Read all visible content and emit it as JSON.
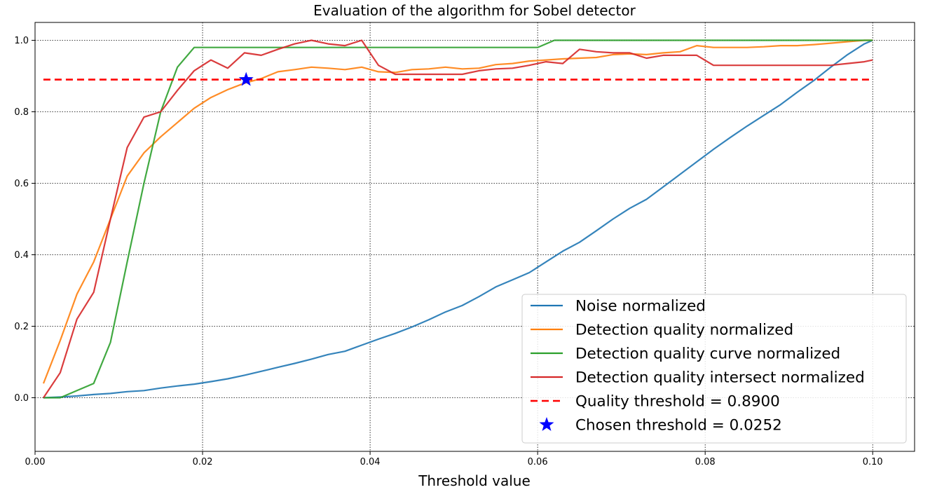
{
  "chart_data": {
    "type": "line",
    "title": "Evaluation of the algorithm for Sobel detector",
    "xlabel": "Threshold value",
    "ylabel": "",
    "xlim": [
      0.0,
      0.105
    ],
    "ylim": [
      -0.15,
      1.05
    ],
    "grid": true,
    "legend_position": "lower-right",
    "x_ticks": [
      "0.00",
      "0.02",
      "0.04",
      "0.06",
      "0.08",
      "0.10"
    ],
    "y_ticks": [
      "0.0",
      "0.2",
      "0.4",
      "0.6",
      "0.8",
      "1.0"
    ],
    "series": [
      {
        "name": "Noise normalized",
        "color": "#1f77b4",
        "style": "solid",
        "x": [
          0.001,
          0.003,
          0.005,
          0.007,
          0.009,
          0.011,
          0.013,
          0.015,
          0.017,
          0.019,
          0.021,
          0.023,
          0.025,
          0.027,
          0.029,
          0.031,
          0.033,
          0.035,
          0.037,
          0.039,
          0.041,
          0.043,
          0.045,
          0.047,
          0.049,
          0.051,
          0.053,
          0.055,
          0.057,
          0.059,
          0.061,
          0.063,
          0.065,
          0.067,
          0.069,
          0.071,
          0.073,
          0.075,
          0.077,
          0.079,
          0.081,
          0.083,
          0.085,
          0.087,
          0.089,
          0.091,
          0.093,
          0.095,
          0.097,
          0.099,
          0.1
        ],
        "y": [
          0.0,
          0.002,
          0.005,
          0.009,
          0.012,
          0.017,
          0.02,
          0.027,
          0.033,
          0.038,
          0.045,
          0.053,
          0.063,
          0.074,
          0.085,
          0.096,
          0.108,
          0.121,
          0.13,
          0.147,
          0.164,
          0.18,
          0.198,
          0.218,
          0.24,
          0.258,
          0.283,
          0.31,
          0.33,
          0.35,
          0.38,
          0.41,
          0.435,
          0.467,
          0.5,
          0.53,
          0.555,
          0.59,
          0.625,
          0.66,
          0.695,
          0.728,
          0.76,
          0.79,
          0.82,
          0.855,
          0.888,
          0.925,
          0.96,
          0.99,
          1.0
        ]
      },
      {
        "name": "Detection quality normalized",
        "color": "#ff7f0e",
        "style": "solid",
        "x": [
          0.001,
          0.003,
          0.005,
          0.007,
          0.009,
          0.011,
          0.013,
          0.015,
          0.017,
          0.019,
          0.021,
          0.023,
          0.025,
          0.027,
          0.029,
          0.031,
          0.033,
          0.035,
          0.037,
          0.039,
          0.041,
          0.043,
          0.045,
          0.047,
          0.049,
          0.051,
          0.053,
          0.055,
          0.057,
          0.059,
          0.061,
          0.063,
          0.065,
          0.067,
          0.069,
          0.071,
          0.073,
          0.075,
          0.077,
          0.079,
          0.081,
          0.083,
          0.085,
          0.087,
          0.089,
          0.091,
          0.093,
          0.095,
          0.097,
          0.099,
          0.1
        ],
        "y": [
          0.04,
          0.16,
          0.29,
          0.38,
          0.5,
          0.62,
          0.685,
          0.73,
          0.77,
          0.81,
          0.84,
          0.862,
          0.88,
          0.893,
          0.912,
          0.918,
          0.925,
          0.922,
          0.918,
          0.925,
          0.912,
          0.91,
          0.918,
          0.92,
          0.925,
          0.92,
          0.922,
          0.932,
          0.935,
          0.942,
          0.945,
          0.948,
          0.95,
          0.952,
          0.96,
          0.962,
          0.96,
          0.965,
          0.968,
          0.985,
          0.98,
          0.98,
          0.98,
          0.982,
          0.985,
          0.985,
          0.988,
          0.992,
          0.996,
          1.0,
          1.0
        ]
      },
      {
        "name": "Detection quality curve normalized",
        "color": "#2ca02c",
        "style": "solid",
        "x": [
          0.001,
          0.003,
          0.005,
          0.007,
          0.009,
          0.011,
          0.013,
          0.015,
          0.017,
          0.019,
          0.021,
          0.023,
          0.025,
          0.027,
          0.029,
          0.031,
          0.033,
          0.035,
          0.037,
          0.039,
          0.041,
          0.043,
          0.045,
          0.047,
          0.049,
          0.051,
          0.053,
          0.055,
          0.057,
          0.059,
          0.06,
          0.062,
          0.065,
          0.07,
          0.075,
          0.08,
          0.085,
          0.09,
          0.095,
          0.1
        ],
        "y": [
          0.0,
          0.0,
          0.02,
          0.04,
          0.155,
          0.38,
          0.6,
          0.8,
          0.925,
          0.98,
          0.98,
          0.98,
          0.98,
          0.98,
          0.98,
          0.98,
          0.98,
          0.98,
          0.98,
          0.98,
          0.98,
          0.98,
          0.98,
          0.98,
          0.98,
          0.98,
          0.98,
          0.98,
          0.98,
          0.98,
          0.98,
          1.0,
          1.0,
          1.0,
          1.0,
          1.0,
          1.0,
          1.0,
          1.0,
          1.0
        ]
      },
      {
        "name": "Detection quality intersect normalized",
        "color": "#d62728",
        "style": "solid",
        "x": [
          0.001,
          0.003,
          0.005,
          0.007,
          0.009,
          0.011,
          0.013,
          0.015,
          0.017,
          0.019,
          0.021,
          0.023,
          0.025,
          0.027,
          0.029,
          0.031,
          0.033,
          0.035,
          0.037,
          0.039,
          0.041,
          0.043,
          0.045,
          0.047,
          0.049,
          0.051,
          0.053,
          0.055,
          0.057,
          0.059,
          0.061,
          0.063,
          0.065,
          0.067,
          0.069,
          0.071,
          0.073,
          0.075,
          0.077,
          0.079,
          0.081,
          0.083,
          0.085,
          0.087,
          0.089,
          0.091,
          0.093,
          0.095,
          0.097,
          0.099,
          0.1
        ],
        "y": [
          0.0,
          0.07,
          0.22,
          0.295,
          0.5,
          0.7,
          0.785,
          0.8,
          0.86,
          0.915,
          0.945,
          0.922,
          0.965,
          0.958,
          0.975,
          0.99,
          1.0,
          0.99,
          0.985,
          1.0,
          0.93,
          0.905,
          0.905,
          0.905,
          0.905,
          0.905,
          0.915,
          0.92,
          0.922,
          0.93,
          0.94,
          0.935,
          0.975,
          0.968,
          0.965,
          0.965,
          0.95,
          0.958,
          0.958,
          0.958,
          0.93,
          0.93,
          0.93,
          0.93,
          0.93,
          0.93,
          0.93,
          0.93,
          0.935,
          0.94,
          0.945
        ]
      }
    ],
    "threshold_line": {
      "name": "Quality threshold = 0.8900",
      "value": 0.89,
      "x_range": [
        0.001,
        0.1
      ],
      "color": "#ff0000",
      "style": "dashed"
    },
    "chosen_point": {
      "name": "Chosen threshold = 0.0252",
      "x": 0.0252,
      "y": 0.89,
      "color": "#0000ff",
      "marker": "star"
    }
  }
}
